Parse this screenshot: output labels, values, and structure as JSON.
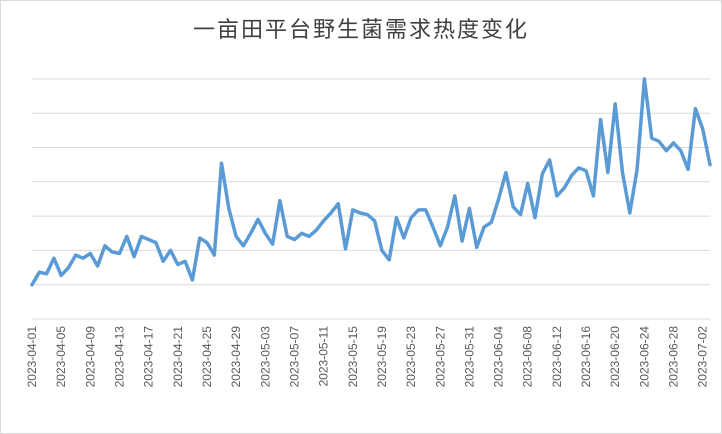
{
  "chart_data": {
    "type": "line",
    "title": "一亩田平台野生菌需求热度变化",
    "xlabel": "",
    "ylabel": "",
    "grid": true,
    "legend": "none",
    "line_color": "#5B9BD5",
    "x_tick_labels": [
      "2023-04-01",
      "2023-04-05",
      "2023-04-09",
      "2023-04-13",
      "2023-04-17",
      "2023-04-21",
      "2023-04-25",
      "2023-04-29",
      "2023-05-03",
      "2023-05-07",
      "2023-05-11",
      "2023-05-15",
      "2023-05-19",
      "2023-05-23",
      "2023-05-27",
      "2023-05-31",
      "2023-06-04",
      "2023-06-08",
      "2023-06-12",
      "2023-06-16",
      "2023-06-20",
      "2023-06-24",
      "2023-06-28",
      "2023-07-02"
    ],
    "x": [
      "2023-04-01",
      "2023-04-02",
      "2023-04-03",
      "2023-04-04",
      "2023-04-05",
      "2023-04-06",
      "2023-04-07",
      "2023-04-08",
      "2023-04-09",
      "2023-04-10",
      "2023-04-11",
      "2023-04-12",
      "2023-04-13",
      "2023-04-14",
      "2023-04-15",
      "2023-04-16",
      "2023-04-17",
      "2023-04-18",
      "2023-04-19",
      "2023-04-20",
      "2023-04-21",
      "2023-04-22",
      "2023-04-23",
      "2023-04-24",
      "2023-04-25",
      "2023-04-26",
      "2023-04-27",
      "2023-04-28",
      "2023-04-29",
      "2023-04-30",
      "2023-05-01",
      "2023-05-02",
      "2023-05-03",
      "2023-05-04",
      "2023-05-05",
      "2023-05-06",
      "2023-05-07",
      "2023-05-08",
      "2023-05-09",
      "2023-05-10",
      "2023-05-11",
      "2023-05-12",
      "2023-05-13",
      "2023-05-14",
      "2023-05-15",
      "2023-05-16",
      "2023-05-17",
      "2023-05-18",
      "2023-05-19",
      "2023-05-20",
      "2023-05-21",
      "2023-05-22",
      "2023-05-23",
      "2023-05-24",
      "2023-05-25",
      "2023-05-26",
      "2023-05-27",
      "2023-05-28",
      "2023-05-29",
      "2023-05-30",
      "2023-05-31",
      "2023-06-01",
      "2023-06-02",
      "2023-06-03",
      "2023-06-04",
      "2023-06-05",
      "2023-06-06",
      "2023-06-07",
      "2023-06-08",
      "2023-06-09",
      "2023-06-10",
      "2023-06-11",
      "2023-06-12",
      "2023-06-13",
      "2023-06-14",
      "2023-06-15",
      "2023-06-16",
      "2023-06-17",
      "2023-06-18",
      "2023-06-19",
      "2023-06-20",
      "2023-06-21",
      "2023-06-22",
      "2023-06-23",
      "2023-06-24",
      "2023-06-25",
      "2023-06-26",
      "2023-06-27",
      "2023-06-28",
      "2023-06-29",
      "2023-06-30",
      "2023-07-01",
      "2023-07-02",
      "2023-07-03"
    ],
    "values": [
      0.2,
      0.6,
      0.55,
      1.05,
      0.5,
      0.75,
      1.15,
      1.05,
      1.2,
      0.8,
      1.45,
      1.25,
      1.2,
      1.75,
      1.1,
      1.75,
      1.65,
      1.55,
      0.95,
      1.3,
      0.85,
      0.95,
      0.35,
      1.7,
      1.55,
      1.15,
      4.1,
      2.65,
      1.75,
      1.45,
      1.85,
      2.3,
      1.85,
      1.5,
      2.9,
      1.75,
      1.65,
      1.85,
      1.75,
      1.95,
      2.25,
      2.5,
      2.8,
      1.35,
      2.6,
      2.5,
      2.45,
      2.25,
      1.3,
      1.0,
      2.35,
      1.7,
      2.35,
      2.6,
      2.6,
      2.05,
      1.45,
      2.05,
      3.05,
      1.6,
      2.65,
      1.4,
      2.05,
      2.2,
      2.95,
      3.8,
      2.7,
      2.45,
      3.45,
      2.35,
      3.75,
      4.2,
      3.05,
      3.3,
      3.7,
      3.95,
      3.85,
      3.05,
      5.5,
      3.8,
      6.0,
      3.8,
      2.5,
      3.9,
      6.8,
      4.9,
      4.8,
      4.5,
      4.75,
      4.5,
      3.9,
      5.85,
      5.2,
      4.05
    ],
    "ylim": [
      -0.9,
      6.8
    ],
    "y_grid_step": 1
  }
}
